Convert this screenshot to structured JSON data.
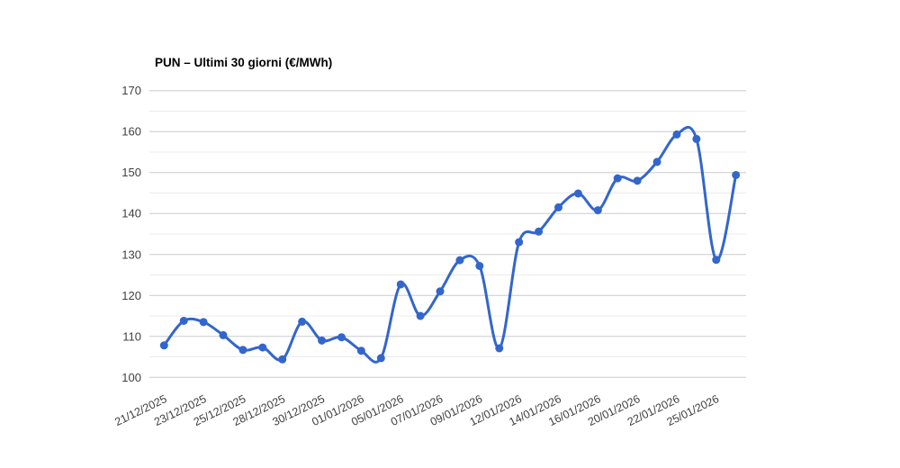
{
  "chart_data": {
    "type": "line",
    "title": "PUN – Ultimi 30 giorni (€/MWh)",
    "unit": "€/MWh",
    "legend": "none",
    "grid": "on",
    "minor_gridlines": true,
    "series": [
      {
        "name": "PUN",
        "values": [
          107.8,
          113.8,
          113.5,
          110.3,
          106.7,
          107.3,
          104.4,
          113.6,
          109.0,
          109.8,
          106.5,
          104.7,
          122.7,
          115.0,
          121.0,
          128.6,
          127.2,
          107.1,
          133.0,
          135.6,
          141.5,
          144.9,
          140.8,
          148.6,
          148.0,
          152.6,
          159.3,
          158.2,
          128.7,
          149.4
        ]
      }
    ],
    "x_tick_labels": [
      "21/12/2025",
      "23/12/2025",
      "25/12/2025",
      "28/12/2025",
      "30/12/2025",
      "01/01/2026",
      "05/01/2026",
      "07/01/2026",
      "09/01/2026",
      "12/01/2026",
      "14/01/2026",
      "16/01/2026",
      "20/01/2026",
      "22/01/2026",
      "25/01/2026"
    ],
    "x_tick_every": 2,
    "x_label_angle_deg": -26,
    "y_ticks": [
      100,
      110,
      120,
      130,
      140,
      150,
      160,
      170
    ],
    "ylim": [
      100,
      170
    ],
    "colors": {
      "line": "#3366cc",
      "marker": "#3366cc",
      "major_grid": "#cccccc",
      "minor_grid": "#ebebeb",
      "axis_label": "#404040",
      "title": "#000000",
      "background": "#ffffff"
    }
  }
}
